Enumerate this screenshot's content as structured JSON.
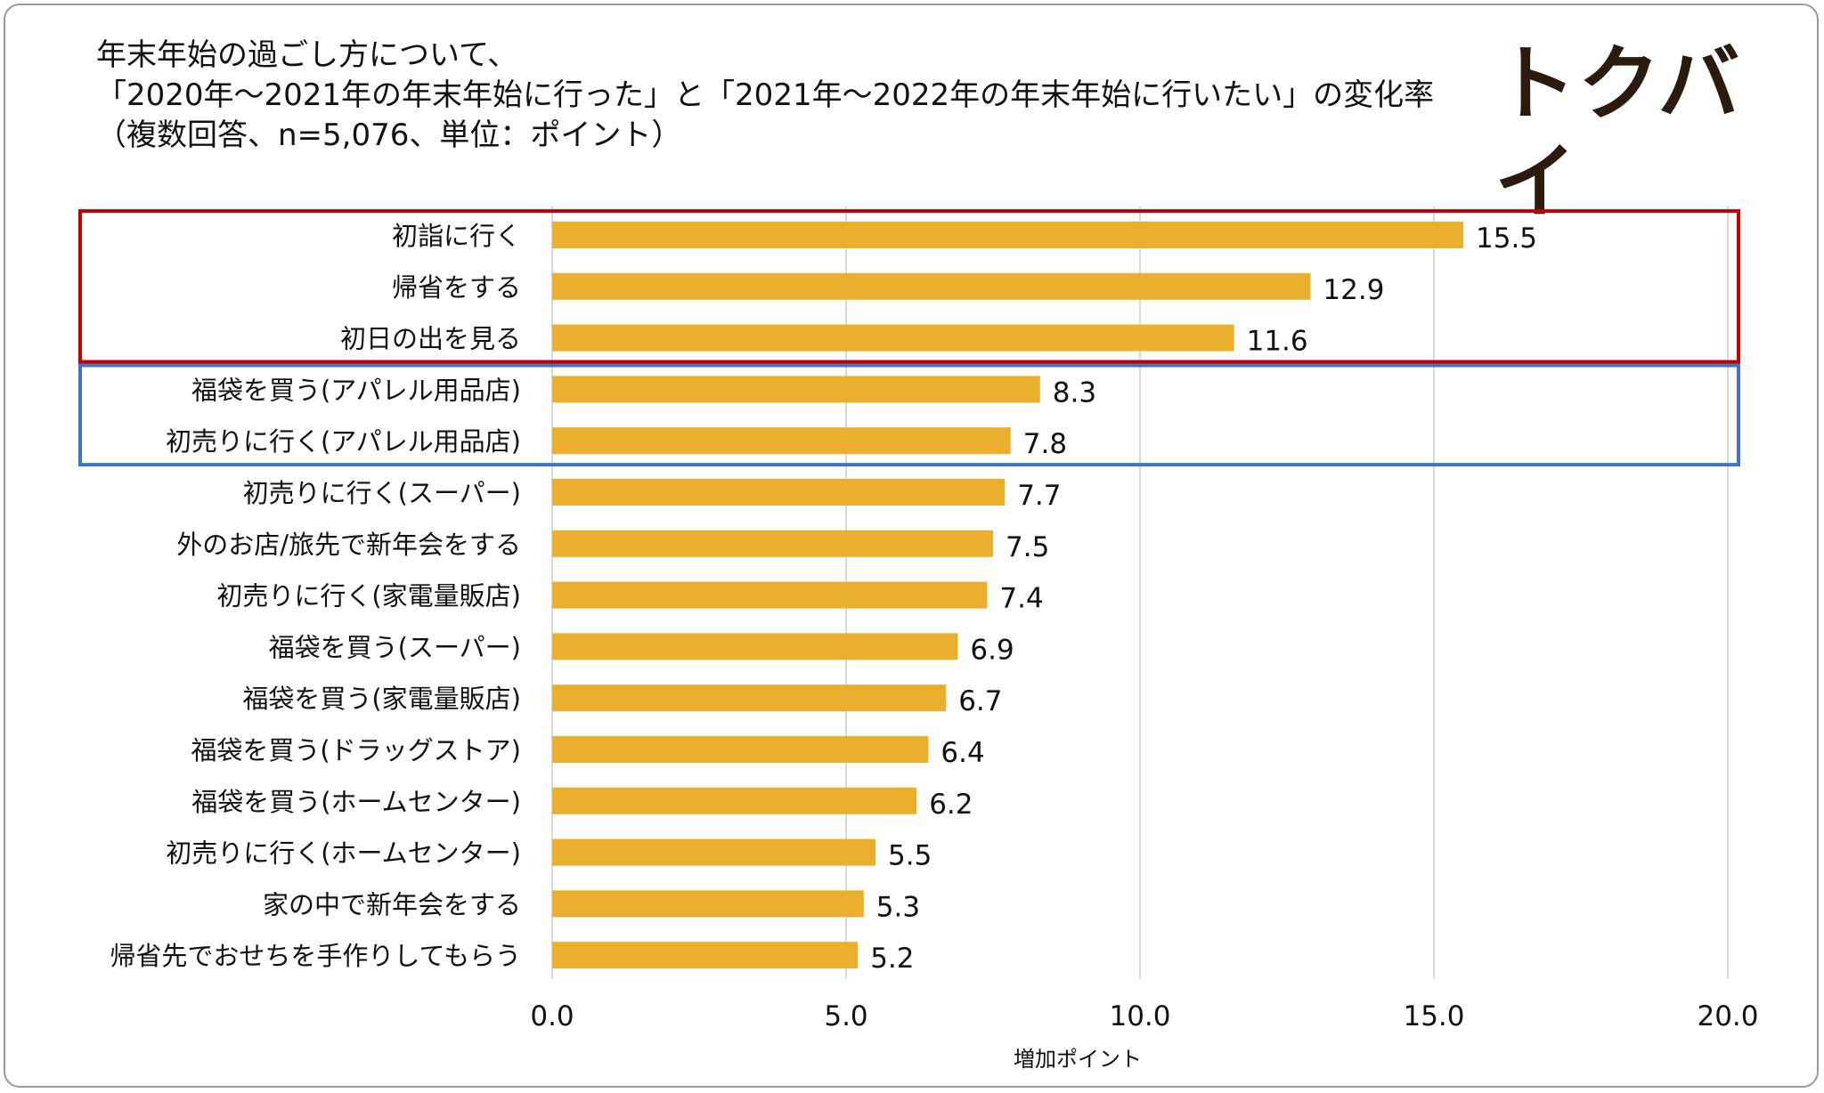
{
  "title_lines": [
    "年末年始の過ごし方について、",
    "「2020年～2021年の年末年始に行った」と「2021年～2022年の年末年始に行いたい」の変化率",
    "（複数回答、n=5,076、単位：ポイント）"
  ],
  "logo_text": "トクバイ",
  "colors": {
    "bar": "#EBAF2E",
    "red_box": "#C00000",
    "blue_box": "#4472C4",
    "grid": "#D9D9D9"
  },
  "highlight_groups": [
    {
      "color": "red",
      "from_index": 0,
      "to_index": 2
    },
    {
      "color": "blue",
      "from_index": 3,
      "to_index": 4
    }
  ],
  "chart_data": {
    "type": "bar",
    "orientation": "horizontal",
    "categories": [
      "初詣に行く",
      "帰省をする",
      "初日の出を見る",
      "福袋を買う(アパレル用品店)",
      "初売りに行く(アパレル用品店)",
      "初売りに行く(スーパー)",
      "外のお店/旅先で新年会をする",
      "初売りに行く(家電量販店)",
      "福袋を買う(スーパー)",
      "福袋を買う(家電量販店)",
      "福袋を買う(ドラッグストア)",
      "福袋を買う(ホームセンター)",
      "初売りに行く(ホームセンター)",
      "家の中で新年会をする",
      "帰省先でおせちを手作りしてもらう"
    ],
    "values": [
      15.5,
      12.9,
      11.6,
      8.3,
      7.8,
      7.7,
      7.5,
      7.4,
      6.9,
      6.7,
      6.4,
      6.2,
      5.5,
      5.3,
      5.2
    ],
    "value_labels": [
      "15.5",
      "12.9",
      "11.6",
      "8.3",
      "7.8",
      "7.7",
      "7.5",
      "7.4",
      "6.9",
      "6.7",
      "6.4",
      "6.2",
      "5.5",
      "5.3",
      "5.2"
    ],
    "xlim": [
      0,
      20
    ],
    "xticks": [
      0,
      5,
      10,
      15,
      20
    ],
    "xtick_labels": [
      "0.0",
      "5.0",
      "10.0",
      "15.0",
      "20.0"
    ],
    "xlabel": "増加ポイント",
    "ylabel": "",
    "grid": "vertical"
  }
}
